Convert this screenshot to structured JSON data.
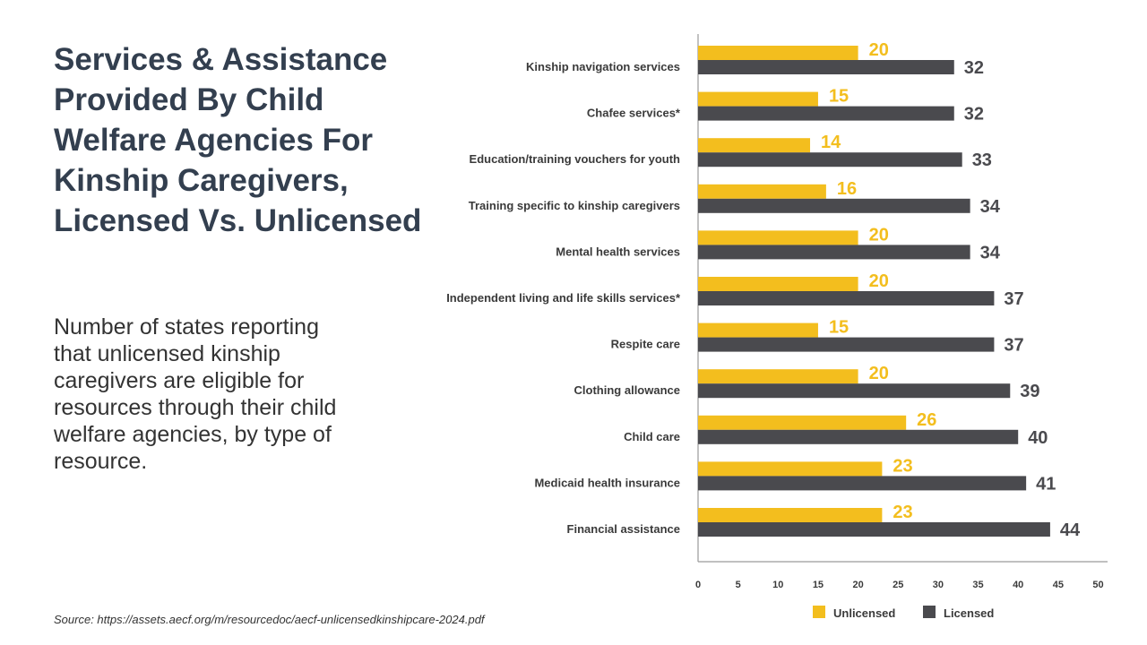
{
  "title": "Services & Assistance Provided By Child Welfare Agencies For Kinship Caregivers, Licensed Vs. Unlicensed",
  "subtitle": "Number of states reporting that unlicensed kinship caregivers are eligible for resources through their child welfare agencies, by type of resource.",
  "source": "Source: https://assets.aecf.org/m/resourcedoc/aecf-unlicensedkinshipcare-2024.pdf",
  "colors": {
    "unlicensed": "#f3be1e",
    "licensed": "#4a4a4e"
  },
  "chart_data": {
    "type": "bar",
    "orientation": "horizontal",
    "categories": [
      "Kinship navigation services",
      "Chafee services*",
      "Education/training vouchers for youth",
      "Training specific to kinship caregivers",
      "Mental health services",
      "Independent living and life skills services*",
      "Respite care",
      "Clothing allowance",
      "Child care",
      "Medicaid health insurance",
      "Financial assistance"
    ],
    "series": [
      {
        "name": "Unlicensed",
        "color": "#f3be1e",
        "values": [
          20,
          15,
          14,
          16,
          20,
          20,
          15,
          20,
          26,
          23,
          23
        ]
      },
      {
        "name": "Licensed",
        "color": "#4a4a4e",
        "values": [
          32,
          32,
          33,
          34,
          34,
          37,
          37,
          39,
          40,
          41,
          44
        ]
      }
    ],
    "xlim": [
      0,
      50
    ],
    "xticks": [
      0,
      5,
      10,
      15,
      20,
      25,
      30,
      35,
      40,
      45,
      50
    ],
    "legend_position": "bottom",
    "grid": false
  }
}
